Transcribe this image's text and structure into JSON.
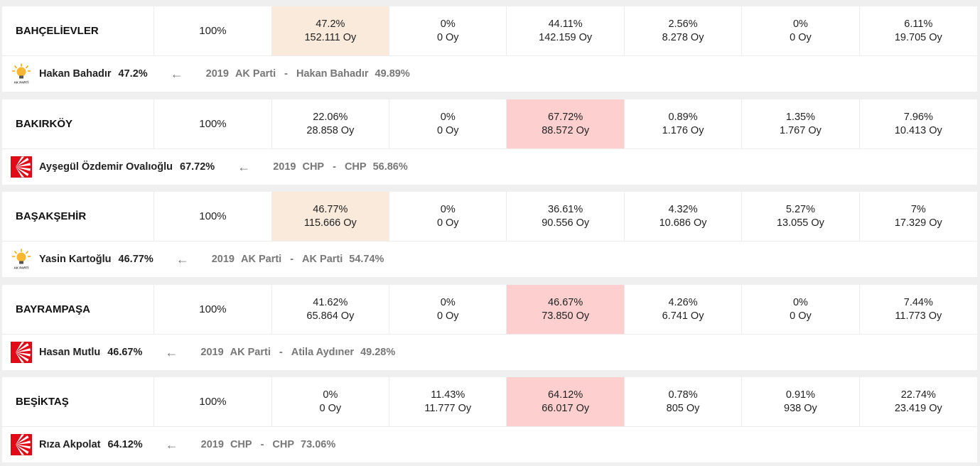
{
  "rows": [
    {
      "district": "BAHÇELİEVLER",
      "opened": "100%",
      "values": [
        {
          "pct": "47.2%",
          "votes": "152.111 Oy"
        },
        {
          "pct": "0%",
          "votes": "0 Oy"
        },
        {
          "pct": "44.11%",
          "votes": "142.159 Oy"
        },
        {
          "pct": "2.56%",
          "votes": "8.278 Oy"
        },
        {
          "pct": "0%",
          "votes": "0 Oy"
        },
        {
          "pct": "6.11%",
          "votes": "19.705 Oy"
        }
      ],
      "highlight_index": 0,
      "highlight_color": "#f9eadb",
      "winner_logo": "akp-lightbulb-icon",
      "logo_text": "AK PARTİ",
      "winner": "Hakan Bahadır",
      "winner_pct": "47.2%",
      "prev_year": "2019",
      "prev_party": "AK Parti",
      "prev_winner": "Hakan Bahadır",
      "prev_pct": "49.89%"
    },
    {
      "district": "BAKIRKÖY",
      "opened": "100%",
      "values": [
        {
          "pct": "22.06%",
          "votes": "28.858 Oy"
        },
        {
          "pct": "0%",
          "votes": "0 Oy"
        },
        {
          "pct": "67.72%",
          "votes": "88.572 Oy"
        },
        {
          "pct": "0.89%",
          "votes": "1.176 Oy"
        },
        {
          "pct": "1.35%",
          "votes": "1.767 Oy"
        },
        {
          "pct": "7.96%",
          "votes": "10.413 Oy"
        }
      ],
      "highlight_index": 2,
      "highlight_color": "#fdcfcf",
      "winner_logo": "chp-six-arrows-icon",
      "winner": "Ayşegül Özdemir Ovalıoğlu",
      "winner_pct": "67.72%",
      "prev_year": "2019",
      "prev_party": "CHP",
      "prev_winner": "CHP",
      "prev_pct": "56.86%"
    },
    {
      "district": "BAŞAKŞEHİR",
      "opened": "100%",
      "values": [
        {
          "pct": "46.77%",
          "votes": "115.666 Oy"
        },
        {
          "pct": "0%",
          "votes": "0 Oy"
        },
        {
          "pct": "36.61%",
          "votes": "90.556 Oy"
        },
        {
          "pct": "4.32%",
          "votes": "10.686 Oy"
        },
        {
          "pct": "5.27%",
          "votes": "13.055 Oy"
        },
        {
          "pct": "7%",
          "votes": "17.329 Oy"
        }
      ],
      "highlight_index": 0,
      "highlight_color": "#f9eadb",
      "winner_logo": "akp-lightbulb-icon",
      "logo_text": "AK PARTİ",
      "winner": "Yasin Kartoğlu",
      "winner_pct": "46.77%",
      "prev_year": "2019",
      "prev_party": "AK Parti",
      "prev_winner": "AK Parti",
      "prev_pct": "54.74%"
    },
    {
      "district": "BAYRAMPAŞA",
      "opened": "100%",
      "values": [
        {
          "pct": "41.62%",
          "votes": "65.864 Oy"
        },
        {
          "pct": "0%",
          "votes": "0 Oy"
        },
        {
          "pct": "46.67%",
          "votes": "73.850 Oy"
        },
        {
          "pct": "4.26%",
          "votes": "6.741 Oy"
        },
        {
          "pct": "0%",
          "votes": "0 Oy"
        },
        {
          "pct": "7.44%",
          "votes": "11.773 Oy"
        }
      ],
      "highlight_index": 2,
      "highlight_color": "#fdcfcf",
      "winner_logo": "chp-six-arrows-icon",
      "winner": "Hasan Mutlu",
      "winner_pct": "46.67%",
      "prev_year": "2019",
      "prev_party": "AK Parti",
      "prev_winner": "Atila Aydıner",
      "prev_pct": "49.28%"
    },
    {
      "district": "BEŞİKTAŞ",
      "opened": "100%",
      "values": [
        {
          "pct": "0%",
          "votes": "0 Oy"
        },
        {
          "pct": "11.43%",
          "votes": "11.777 Oy"
        },
        {
          "pct": "64.12%",
          "votes": "66.017 Oy"
        },
        {
          "pct": "0.78%",
          "votes": "805 Oy"
        },
        {
          "pct": "0.91%",
          "votes": "938 Oy"
        },
        {
          "pct": "22.74%",
          "votes": "23.419 Oy"
        }
      ],
      "highlight_index": 2,
      "highlight_color": "#fdcfcf",
      "winner_logo": "chp-six-arrows-icon",
      "winner": "Rıza Akpolat",
      "winner_pct": "64.12%",
      "prev_year": "2019",
      "prev_party": "CHP",
      "prev_winner": "CHP",
      "prev_pct": "73.06%"
    }
  ],
  "arrow_glyph": "←",
  "prev_separator": "-"
}
